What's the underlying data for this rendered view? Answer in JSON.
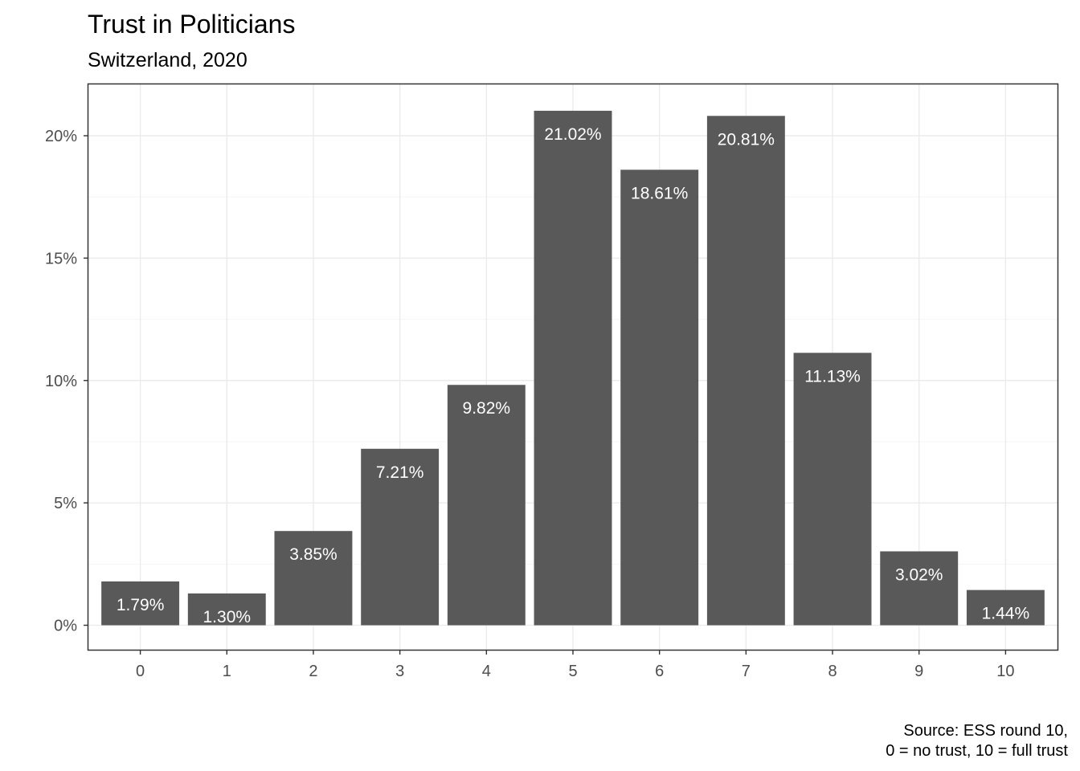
{
  "chart_data": {
    "type": "bar",
    "title": "Trust in Politicians",
    "subtitle": "Switzerland, 2020",
    "caption": [
      "Source: ESS round 10,",
      "0 = no trust, 10 = full trust"
    ],
    "xlabel": "",
    "ylabel": "",
    "categories": [
      "0",
      "1",
      "2",
      "3",
      "4",
      "5",
      "6",
      "7",
      "8",
      "9",
      "10"
    ],
    "values": [
      1.79,
      1.3,
      3.85,
      7.21,
      9.82,
      21.02,
      18.61,
      20.81,
      11.13,
      3.02,
      1.44
    ],
    "value_labels": [
      "1.79%",
      "1.30%",
      "3.85%",
      "7.21%",
      "9.82%",
      "21.02%",
      "18.61%",
      "20.81%",
      "11.13%",
      "3.02%",
      "1.44%"
    ],
    "ylim": [
      -1.0,
      22.1
    ],
    "yticks": [
      0,
      5,
      10,
      15,
      20
    ],
    "ytick_labels": [
      "0%",
      "5%",
      "10%",
      "15%",
      "20%"
    ],
    "grid": true,
    "legend": "none",
    "colors": {
      "bar": "#595959",
      "bar_label": "#ffffff",
      "grid_major": "#ebebeb",
      "grid_minor": "#f5f5f5",
      "panel_border": "#333333",
      "tick_text": "#4d4d4d"
    }
  }
}
